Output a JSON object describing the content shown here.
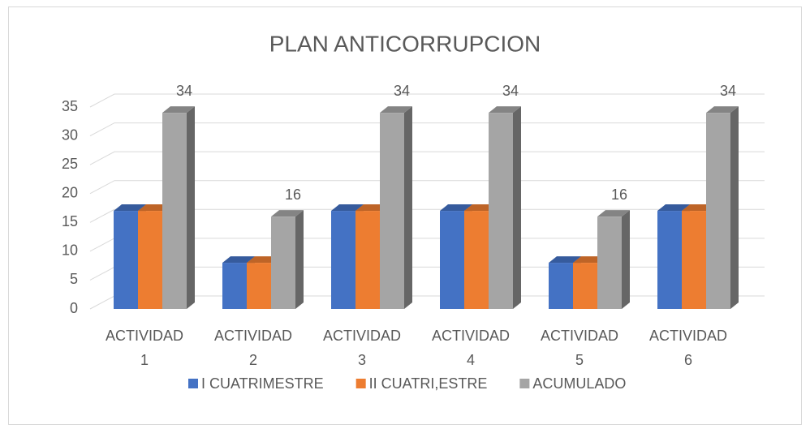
{
  "chart_data": {
    "type": "bar3d",
    "title": "PLAN ANTICORRUPCION",
    "categories": [
      "ACTIVIDAD 1",
      "ACTIVIDAD 2",
      "ACTIVIDAD 3",
      "ACTIVIDAD 4",
      "ACTIVIDAD 5",
      "ACTIVIDAD 6"
    ],
    "series": [
      {
        "name": "I CUATRIMESTRE",
        "color": "#4472c4",
        "values": [
          17,
          8,
          17,
          17,
          8,
          17
        ]
      },
      {
        "name": "II CUATRI,ESTRE",
        "color": "#ed7d31",
        "values": [
          17,
          8,
          17,
          17,
          8,
          17
        ]
      },
      {
        "name": "ACUMULADO",
        "color": "#a5a5a5",
        "values": [
          34,
          16,
          34,
          34,
          16,
          34
        ],
        "data_labels": true
      }
    ],
    "ylim": [
      0,
      35
    ],
    "yticks": [
      0,
      5,
      10,
      15,
      20,
      25,
      30,
      35
    ],
    "grid": true,
    "legend": "bottom"
  }
}
